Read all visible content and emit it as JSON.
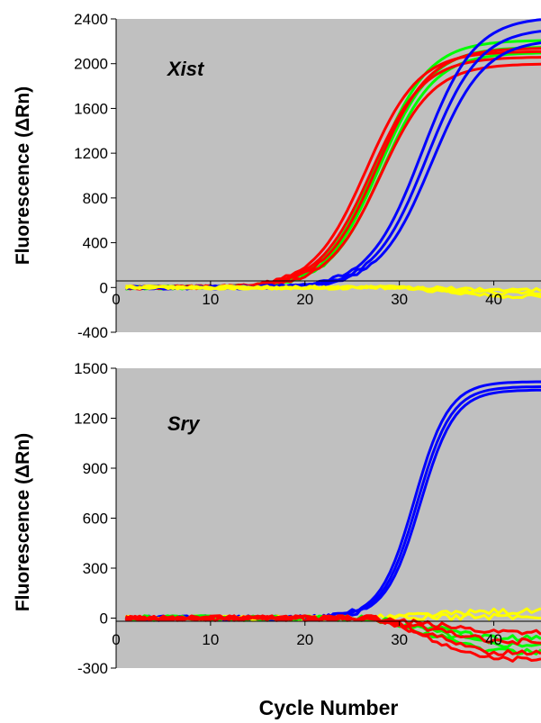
{
  "figure": {
    "xlabel": "Cycle Number"
  },
  "chart_data": [
    {
      "type": "line",
      "title": "Xist",
      "ylabel": "Fluorescence (ΔRn)",
      "xlabel": "Cycle Number",
      "xlim": [
        0,
        45
      ],
      "ylim": [
        -400,
        2400
      ],
      "x_ticks": [
        10,
        20,
        30,
        40
      ],
      "y_ticks": [
        -400,
        0,
        400,
        800,
        1200,
        1600,
        2000,
        2400
      ],
      "grid": false,
      "background": "#c0c0c0",
      "series": [
        {
          "color": "#00ff00",
          "count": 3,
          "midpoints": [
            27.6,
            27.9,
            28.2
          ],
          "plateaus": [
            2210,
            2150,
            2100
          ]
        },
        {
          "color": "#ff0000",
          "count": 4,
          "midpoints": [
            26.5,
            27.0,
            27.6,
            28.0
          ],
          "plateaus": [
            2110,
            2060,
            2140,
            2000
          ]
        },
        {
          "color": "#0000ff",
          "count": 3,
          "midpoints": [
            32.4,
            32.9,
            33.4
          ],
          "plateaus": [
            2420,
            2320,
            2220
          ]
        },
        {
          "color": "#ffff00",
          "count": 3,
          "midpoints": [],
          "plateaus": [
            -20,
            -50,
            -80
          ]
        }
      ]
    },
    {
      "type": "line",
      "title": "Sry",
      "ylabel": "Fluorescence (ΔRn)",
      "xlabel": "Cycle Number",
      "xlim": [
        0,
        45
      ],
      "ylim": [
        -300,
        1500
      ],
      "x_ticks": [
        10,
        20,
        30,
        40
      ],
      "y_ticks": [
        -300,
        0,
        300,
        600,
        900,
        1200,
        1500
      ],
      "grid": false,
      "background": "#c0c0c0",
      "series": [
        {
          "color": "#0000ff",
          "count": 3,
          "midpoints": [
            31.6,
            31.9,
            32.2
          ],
          "plateaus": [
            1420,
            1390,
            1370
          ]
        },
        {
          "color": "#ffff00",
          "count": 2,
          "midpoints": [],
          "plateaus": [
            40,
            10
          ]
        },
        {
          "color": "#00ff00",
          "count": 3,
          "midpoints": [],
          "plateaus": [
            -120,
            -160,
            -200
          ]
        },
        {
          "color": "#ff0000",
          "count": 4,
          "midpoints": [],
          "plateaus": [
            -80,
            -140,
            -210,
            -250
          ]
        }
      ]
    }
  ]
}
